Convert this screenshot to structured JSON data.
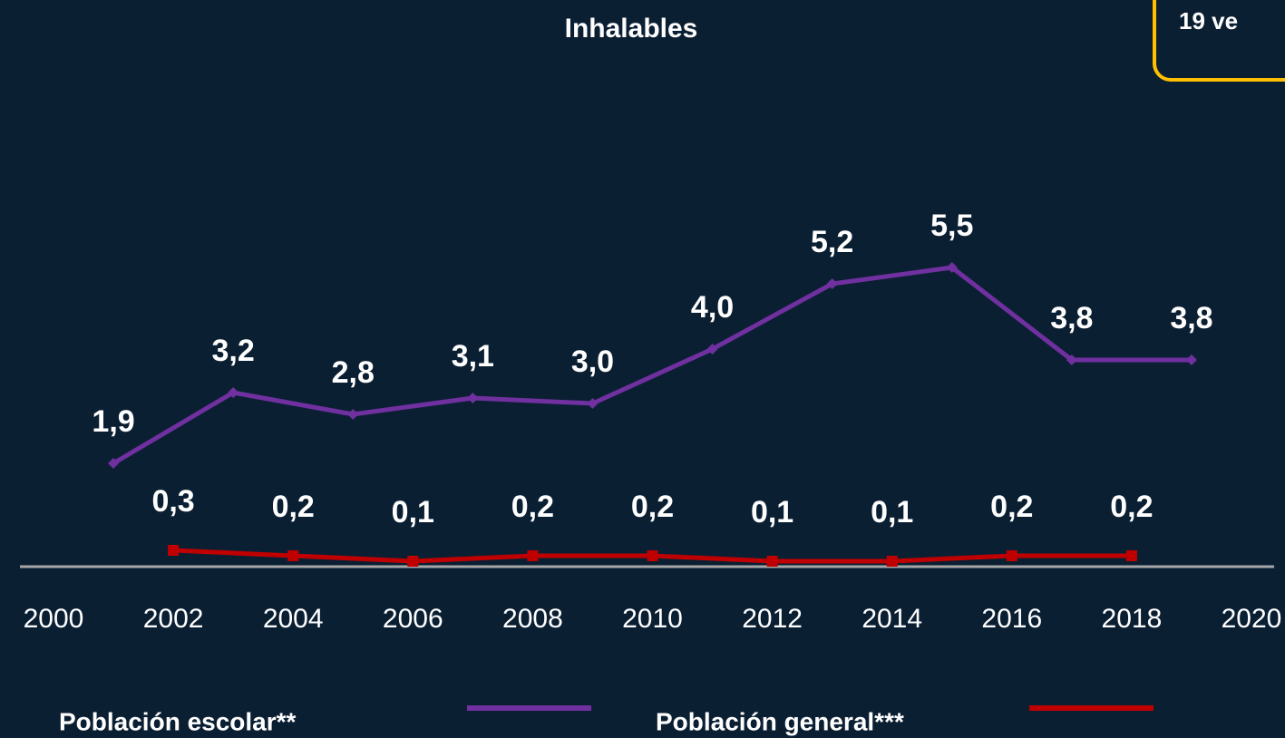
{
  "chart_data": {
    "type": "line",
    "title": "Inhalables",
    "annotation": "19 ve",
    "x": [
      2001,
      2003,
      2005,
      2007,
      2009,
      2011,
      2013,
      2015,
      2017,
      2019
    ],
    "xlim": [
      2000,
      2020
    ],
    "xticks": [
      2000,
      2002,
      2004,
      2006,
      2008,
      2010,
      2012,
      2014,
      2016,
      2018,
      2020
    ],
    "ylim": [
      0,
      8
    ],
    "series": [
      {
        "name": "Población escolar**",
        "color": "#7030a0",
        "marker": "diamond",
        "x": [
          2001,
          2003,
          2005,
          2007,
          2009,
          2011,
          2013,
          2015,
          2017,
          2019
        ],
        "values": [
          1.9,
          3.2,
          2.8,
          3.1,
          3.0,
          4.0,
          5.2,
          5.5,
          3.8,
          3.8
        ],
        "value_labels": [
          "1,9",
          "3,2",
          "2,8",
          "3,1",
          "3,0",
          "4,0",
          "5,2",
          "5,5",
          "3,8",
          "3,8"
        ]
      },
      {
        "name": "Población general***",
        "color": "#c00000",
        "marker": "square",
        "x": [
          2002,
          2004,
          2006,
          2008,
          2010,
          2012,
          2014,
          2016,
          2018
        ],
        "values": [
          0.3,
          0.2,
          0.1,
          0.2,
          0.2,
          0.1,
          0.1,
          0.2,
          0.2
        ],
        "value_labels": [
          "0,3",
          "0,2",
          "0,1",
          "0,2",
          "0,2",
          "0,1",
          "0,1",
          "0,2",
          "0,2"
        ]
      }
    ]
  }
}
